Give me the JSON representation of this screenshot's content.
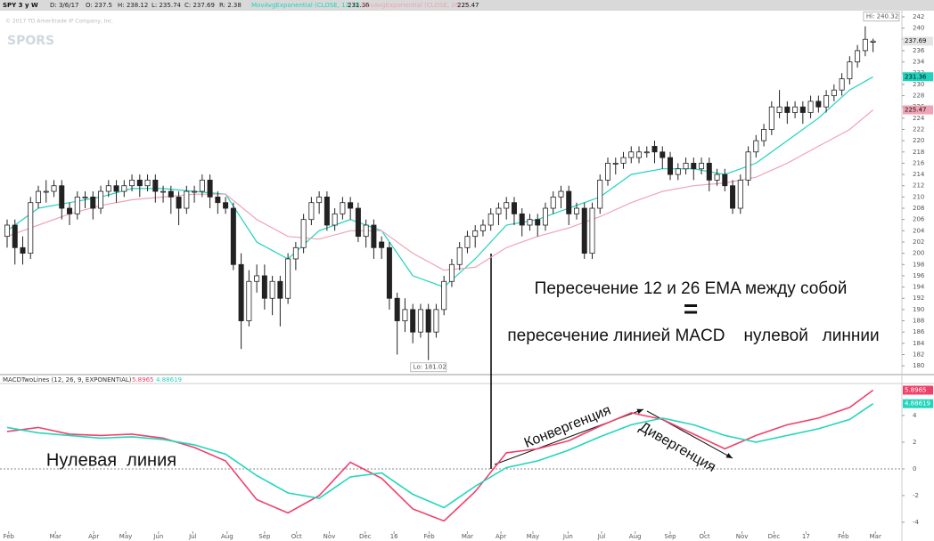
{
  "header": {
    "symbol": "SPY 3 y W",
    "items": [
      "D: 3/6/17",
      "O: 237.5",
      "H: 238.12",
      "L: 235.74",
      "C: 237.69",
      "R: 2.38"
    ],
    "watermark": "© 2017 TD Ameritrade IP Company, Inc.",
    "logo": "SPORS"
  },
  "annotations": [
    "Пересечение 12 и 26 EMA между собой",
    "=",
    "пересечение линией MACD    нулевой   линнии",
    "Конвергенция",
    "Дивергенция",
    "Нулевая  линия"
  ],
  "chart_data": [
    {
      "type": "candlestick",
      "open": [
        203,
        205,
        201,
        200,
        209,
        211,
        211,
        212,
        208,
        207,
        210,
        210,
        208,
        211,
        212,
        211,
        212,
        213,
        212,
        213,
        211,
        211,
        210,
        208,
        211,
        211,
        213,
        210,
        209,
        208,
        198,
        188,
        195,
        196,
        192,
        195,
        192,
        199,
        201,
        206,
        209,
        210,
        205,
        207,
        209,
        208,
        203,
        205,
        202,
        201,
        192,
        188,
        190,
        186,
        190,
        186,
        190,
        195,
        198,
        201,
        203,
        204,
        205,
        207,
        208,
        209,
        207,
        205,
        206,
        205,
        208,
        210,
        211,
        207,
        208,
        200,
        208,
        213,
        216,
        216,
        217,
        217,
        218,
        219,
        218,
        217,
        214,
        215,
        216,
        215,
        216,
        213,
        214,
        212,
        208,
        213,
        218,
        220,
        222,
        225,
        226,
        225,
        226,
        225,
        227,
        226,
        228,
        229,
        231,
        234,
        236,
        237.5
      ],
      "high": [
        206,
        206,
        203,
        210,
        212,
        213,
        213,
        213,
        209,
        211,
        211,
        211,
        212,
        213,
        213,
        213,
        214,
        214,
        214,
        214,
        212,
        212,
        211,
        212,
        212,
        214,
        214,
        211,
        210,
        209,
        200,
        197,
        198,
        198,
        196,
        196,
        200,
        202,
        207,
        210,
        211,
        211,
        208,
        210,
        210,
        209,
        206,
        206,
        203,
        202,
        193,
        192,
        191,
        191,
        191,
        191,
        196,
        199,
        202,
        204,
        205,
        206,
        208,
        209,
        210,
        210,
        208,
        207,
        207,
        209,
        211,
        212,
        212,
        209,
        209,
        209,
        214,
        217,
        217,
        218,
        219,
        219,
        219,
        220,
        219,
        218,
        216,
        217,
        217,
        217,
        217,
        215,
        215,
        213,
        214,
        219,
        221,
        223,
        227,
        229,
        227,
        227,
        227,
        228,
        228,
        229,
        230,
        232,
        235,
        237,
        240.32,
        238.12
      ],
      "low": [
        201,
        198,
        198,
        199,
        208,
        209,
        210,
        206,
        205,
        206,
        208,
        206,
        207,
        210,
        209,
        210,
        211,
        210,
        211,
        209,
        209,
        207,
        205,
        207,
        209,
        210,
        208,
        207,
        207,
        197,
        183,
        187,
        193,
        190,
        189,
        187,
        191,
        197,
        200,
        205,
        207,
        204,
        204,
        206,
        206,
        202,
        201,
        199,
        199,
        190,
        182,
        186,
        184,
        185,
        181.02,
        185,
        189,
        194,
        197,
        200,
        201,
        203,
        204,
        205,
        206,
        205,
        203,
        204,
        203,
        204,
        207,
        208,
        205,
        206,
        199,
        199,
        207,
        212,
        214,
        215,
        216,
        216,
        217,
        216,
        215,
        213,
        213,
        214,
        213,
        214,
        211,
        212,
        211,
        207,
        207,
        212,
        217,
        219,
        221,
        224,
        223,
        224,
        223,
        224,
        225,
        225,
        227,
        228,
        230,
        233,
        235,
        235.74
      ],
      "close": [
        205,
        201,
        200,
        209,
        211,
        211,
        212,
        208,
        207,
        210,
        210,
        208,
        211,
        212,
        211,
        212,
        213,
        212,
        213,
        211,
        211,
        210,
        208,
        211,
        211,
        213,
        210,
        209,
        208,
        198,
        188,
        195,
        196,
        192,
        195,
        192,
        199,
        201,
        206,
        209,
        210,
        205,
        207,
        209,
        208,
        203,
        205,
        201,
        201,
        192,
        188,
        190,
        186,
        190,
        186,
        190,
        195,
        198,
        201,
        203,
        204,
        205,
        207,
        208,
        209,
        207,
        205,
        206,
        205,
        208,
        210,
        211,
        207,
        208,
        200,
        208,
        213,
        216,
        216,
        217,
        218,
        218,
        218,
        218,
        217,
        214,
        215,
        216,
        215,
        216,
        213,
        214,
        212,
        208,
        213,
        218,
        220,
        222,
        226,
        226,
        225,
        226,
        225,
        227,
        226,
        228,
        229,
        231,
        234,
        236,
        238,
        237.69
      ],
      "candle_color": "#222222",
      "xlim": [
        -0.914,
        114.7
      ],
      "ylim": [
        178.6,
        243.1
      ],
      "yticks": [
        180,
        182,
        184,
        186,
        188,
        190,
        192,
        194,
        196,
        198,
        200,
        202,
        204,
        206,
        208,
        210,
        212,
        214,
        216,
        218,
        220,
        222,
        224,
        226,
        228,
        230,
        232,
        234,
        236,
        238,
        240,
        242
      ],
      "series": [
        {
          "name": "MovAvgExponential (CLOSE, 12, 0)",
          "color": "#1fd3bd",
          "x": [
            0,
            4,
            8,
            12,
            16,
            20,
            24,
            28,
            32,
            36,
            40,
            44,
            48,
            52,
            56,
            60,
            64,
            68,
            72,
            76,
            80,
            84,
            88,
            92,
            96,
            100,
            104,
            108,
            111
          ],
          "values": [
            204,
            208,
            209,
            210,
            211.5,
            211.5,
            211,
            210.5,
            202,
            199,
            204,
            206,
            204,
            196,
            194,
            199,
            205,
            206,
            208,
            210,
            214,
            215,
            215,
            214,
            216,
            220,
            224,
            229,
            231.36
          ]
        },
        {
          "name": "MovAvgExponential (CLOSE, 26, 0)",
          "color": "#f0a3b4",
          "x": [
            0,
            4,
            8,
            12,
            16,
            20,
            24,
            28,
            32,
            36,
            40,
            44,
            48,
            52,
            56,
            60,
            64,
            68,
            72,
            76,
            80,
            84,
            88,
            92,
            96,
            100,
            104,
            108,
            111
          ],
          "values": [
            203,
            205,
            207,
            208.5,
            209.5,
            210,
            210.5,
            210.5,
            206,
            203,
            202.5,
            204,
            204,
            200,
            197,
            197.5,
            201,
            203,
            204.5,
            206.5,
            209,
            211,
            212,
            212.5,
            213.5,
            216,
            219,
            222,
            225.47
          ]
        }
      ],
      "high_label": "Hi: 240.32",
      "low_label": "Lo: 181.02"
    },
    {
      "type": "line",
      "title": "MACDTwoLines (12, 26, 9, EXPONENTIAL)",
      "xlim": [
        -0.914,
        114.7
      ],
      "ylim": [
        -4.87,
        6.33
      ],
      "yticks": [
        4,
        2,
        0,
        -2,
        -4
      ],
      "zero_line": true,
      "xticks": [
        {
          "value": 0.2,
          "label": "Feb"
        },
        {
          "value": 6.2,
          "label": "Mar"
        },
        {
          "value": 11.1,
          "label": "Apr"
        },
        {
          "value": 15.2,
          "label": "May"
        },
        {
          "value": 19.4,
          "label": "Jun"
        },
        {
          "value": 23.8,
          "label": "Jul"
        },
        {
          "value": 28.2,
          "label": "Aug"
        },
        {
          "value": 33,
          "label": "Sep"
        },
        {
          "value": 37.1,
          "label": "Oct"
        },
        {
          "value": 41.3,
          "label": "Nov"
        },
        {
          "value": 45.9,
          "label": "Dec"
        },
        {
          "value": 49.6,
          "label": "16"
        },
        {
          "value": 54.1,
          "label": "Feb"
        },
        {
          "value": 59,
          "label": "Mar"
        },
        {
          "value": 63.3,
          "label": "Apr"
        },
        {
          "value": 67.4,
          "label": "May"
        },
        {
          "value": 71.9,
          "label": "Jun"
        },
        {
          "value": 76.2,
          "label": "Jul"
        },
        {
          "value": 80.5,
          "label": "Aug"
        },
        {
          "value": 85,
          "label": "Sep"
        },
        {
          "value": 89.4,
          "label": "Oct"
        },
        {
          "value": 94.2,
          "label": "Nov"
        },
        {
          "value": 98.3,
          "label": "Dec"
        },
        {
          "value": 102.4,
          "label": "17"
        },
        {
          "value": 107.2,
          "label": "Feb"
        },
        {
          "value": 111.3,
          "label": "Mar"
        }
      ],
      "series": [
        {
          "color": "#f0406a",
          "x": [
            0,
            4,
            8,
            12,
            16,
            20,
            24,
            28,
            32,
            36,
            40,
            44,
            48,
            52,
            56,
            60,
            64,
            68,
            72,
            76,
            80,
            84,
            88,
            92,
            96,
            100,
            104,
            108,
            111
          ],
          "values": [
            2.8,
            3.1,
            2.6,
            2.5,
            2.6,
            2.3,
            1.6,
            0.6,
            -2.3,
            -3.3,
            -2.0,
            0.5,
            -0.7,
            -3.0,
            -3.9,
            -1.7,
            1.2,
            1.5,
            2.1,
            3.2,
            4.2,
            3.7,
            2.6,
            1.5,
            2.5,
            3.3,
            3.8,
            4.6,
            5.8965
          ]
        },
        {
          "color": "#22d6bb",
          "x": [
            0,
            4,
            8,
            12,
            16,
            20,
            24,
            28,
            32,
            36,
            40,
            44,
            48,
            52,
            56,
            60,
            64,
            68,
            72,
            76,
            80,
            84,
            88,
            92,
            96,
            100,
            104,
            108,
            111
          ],
          "values": [
            3.1,
            2.7,
            2.5,
            2.3,
            2.4,
            2.2,
            1.8,
            1.1,
            -0.5,
            -1.8,
            -2.2,
            -0.6,
            -0.3,
            -1.9,
            -2.9,
            -1.3,
            0.1,
            0.6,
            1.4,
            2.4,
            3.3,
            3.8,
            3.3,
            2.5,
            2.0,
            2.5,
            3.0,
            3.7,
            4.88619
          ]
        }
      ]
    }
  ]
}
